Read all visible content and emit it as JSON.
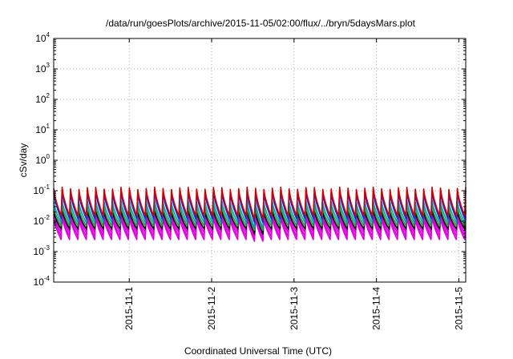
{
  "chart_data": {
    "type": "line",
    "title": "/data/run/goesPlots/archive/2015-11-05/02:00/flux/../bryn/5daysMars.plot",
    "xlabel": "Coordinated Universal Time (UTC)",
    "ylabel": "cSv/day",
    "yscale": "log",
    "ylim": [
      0.0001,
      10000
    ],
    "y_ticks": [
      {
        "base": "10",
        "exp": "4",
        "value": 10000
      },
      {
        "base": "10",
        "exp": "3",
        "value": 1000
      },
      {
        "base": "10",
        "exp": "2",
        "value": 100
      },
      {
        "base": "10",
        "exp": "1",
        "value": 10
      },
      {
        "base": "10",
        "exp": "0",
        "value": 1
      },
      {
        "base": "10",
        "exp": "-1",
        "value": 0.1
      },
      {
        "base": "10",
        "exp": "-2",
        "value": 0.01
      },
      {
        "base": "10",
        "exp": "-3",
        "value": 0.001
      },
      {
        "base": "10",
        "exp": "-4",
        "value": 0.0001
      }
    ],
    "xlim": [
      "2015-10-31T02:00",
      "2015-11-05T02:00"
    ],
    "x_ticks": [
      "2015-11-1",
      "2015-11-2",
      "2015-11-3",
      "2015-11-4",
      "2015-11-5"
    ],
    "grid": true,
    "pattern": {
      "cycles": 49,
      "dip_cycles": [
        23,
        24
      ]
    },
    "series": [
      {
        "color": "#d40000",
        "peak": 0.12,
        "trough": 0.015,
        "dip_trough": 0.012
      },
      {
        "color": "#2020e0",
        "peak": 0.09,
        "trough": 0.012,
        "dip_trough": 0.009
      },
      {
        "color": "#00a0b0",
        "peak": 0.045,
        "trough": 0.009,
        "dip_trough": 0.006
      },
      {
        "color": "#20a040",
        "peak": 0.03,
        "trough": 0.007,
        "dip_trough": 0.005
      },
      {
        "color": "#000000",
        "peak": 0.022,
        "trough": 0.0055,
        "dip_trough": 0.0038
      },
      {
        "color": "#e000e0",
        "peak": 0.02,
        "trough": 0.0042,
        "dip_trough": 0.0035
      },
      {
        "color": "#e000e0",
        "peak": 0.016,
        "trough": 0.0032,
        "dip_trough": 0.0028
      },
      {
        "color": "#e000e0",
        "peak": 0.013,
        "trough": 0.0025,
        "dip_trough": 0.0022
      }
    ]
  }
}
